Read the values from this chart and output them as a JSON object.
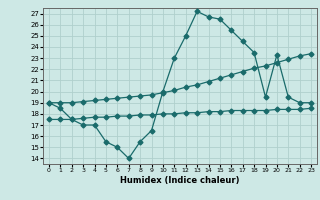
{
  "xlabel": "Humidex (Indice chaleur)",
  "ylabel": "",
  "bg_color": "#cde8e5",
  "grid_color": "#b0d0cc",
  "line_color": "#1a6b6b",
  "xlim": [
    -0.5,
    23.5
  ],
  "ylim": [
    13.5,
    27.5
  ],
  "xticks": [
    0,
    1,
    2,
    3,
    4,
    5,
    6,
    7,
    8,
    9,
    10,
    11,
    12,
    13,
    14,
    15,
    16,
    17,
    18,
    19,
    20,
    21,
    22,
    23
  ],
  "yticks": [
    14,
    15,
    16,
    17,
    18,
    19,
    20,
    21,
    22,
    23,
    24,
    25,
    26,
    27
  ],
  "line1_x": [
    0,
    1,
    2,
    3,
    4,
    5,
    6,
    7,
    8,
    9,
    10,
    11,
    12,
    13,
    14,
    15,
    16,
    17,
    18,
    19,
    20,
    21,
    22,
    23
  ],
  "line1_y": [
    19.0,
    18.5,
    17.5,
    17.0,
    17.0,
    15.5,
    15.0,
    14.0,
    15.5,
    16.5,
    20.0,
    23.0,
    25.0,
    27.2,
    26.7,
    26.5,
    25.5,
    24.5,
    23.5,
    19.5,
    23.3,
    19.5,
    19.0,
    19.0
  ],
  "line2_x": [
    0,
    1,
    2,
    3,
    4,
    5,
    6,
    7,
    8,
    9,
    10,
    11,
    12,
    13,
    14,
    15,
    16,
    17,
    18,
    19,
    20,
    21,
    22,
    23
  ],
  "line2_y": [
    19.0,
    19.0,
    19.0,
    19.1,
    19.2,
    19.3,
    19.4,
    19.5,
    19.6,
    19.7,
    19.9,
    20.1,
    20.4,
    20.6,
    20.9,
    21.2,
    21.5,
    21.8,
    22.1,
    22.3,
    22.6,
    22.9,
    23.2,
    23.4
  ],
  "line3_x": [
    0,
    1,
    2,
    3,
    4,
    5,
    6,
    7,
    8,
    9,
    10,
    11,
    12,
    13,
    14,
    15,
    16,
    17,
    18,
    19,
    20,
    21,
    22,
    23
  ],
  "line3_y": [
    17.5,
    17.5,
    17.5,
    17.6,
    17.7,
    17.7,
    17.8,
    17.8,
    17.9,
    17.9,
    18.0,
    18.0,
    18.1,
    18.1,
    18.2,
    18.2,
    18.3,
    18.3,
    18.3,
    18.3,
    18.4,
    18.4,
    18.4,
    18.5
  ]
}
